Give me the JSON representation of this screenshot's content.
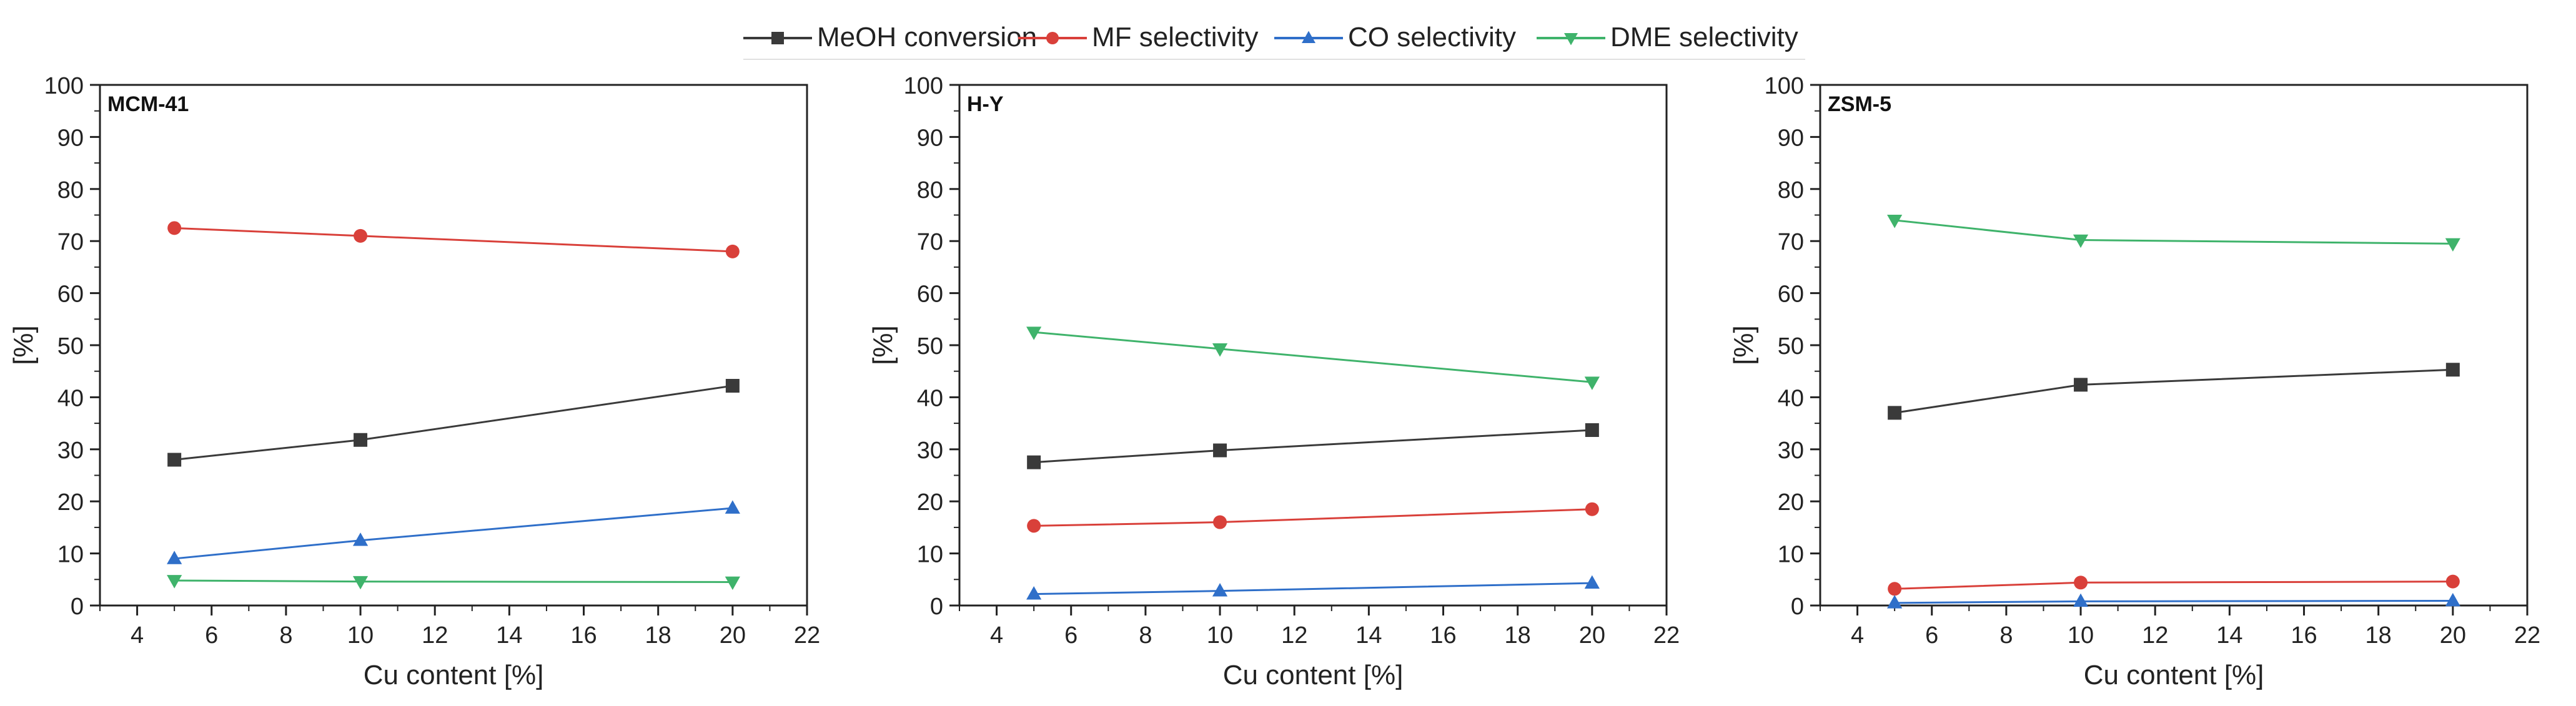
{
  "legend": {
    "items": [
      {
        "label": "MeOH conversion",
        "color": "#3a3a3a",
        "marker": "square"
      },
      {
        "label": "MF selectivity",
        "color": "#d9403a",
        "marker": "circle"
      },
      {
        "label": "CO selectivity",
        "color": "#2f6fc9",
        "marker": "triangle-up"
      },
      {
        "label": "DME selectivity",
        "color": "#3fb36b",
        "marker": "triangle-down"
      }
    ]
  },
  "chart_data": [
    {
      "type": "line",
      "title": "MCM-41",
      "xlabel": "Cu content [%]",
      "ylabel": "[%]",
      "xlim": [
        3,
        22
      ],
      "ylim": [
        0,
        100
      ],
      "xticks": [
        4,
        6,
        8,
        10,
        12,
        14,
        16,
        18,
        20,
        22
      ],
      "yticks": [
        0,
        10,
        20,
        30,
        40,
        50,
        60,
        70,
        80,
        90,
        100
      ],
      "x": [
        5,
        10,
        20
      ],
      "series": [
        {
          "name": "MeOH conversion",
          "values": [
            28,
            31.8,
            42.2
          ]
        },
        {
          "name": "MF selectivity",
          "values": [
            72.5,
            71,
            68
          ]
        },
        {
          "name": "CO selectivity",
          "values": [
            9,
            12.5,
            18.7
          ]
        },
        {
          "name": "DME selectivity",
          "values": [
            4.8,
            4.6,
            4.5
          ]
        }
      ]
    },
    {
      "type": "line",
      "title": "H-Y",
      "xlabel": "Cu content [%]",
      "ylabel": "[%]",
      "xlim": [
        3,
        22
      ],
      "ylim": [
        0,
        100
      ],
      "xticks": [
        4,
        6,
        8,
        10,
        12,
        14,
        16,
        18,
        20,
        22
      ],
      "yticks": [
        0,
        10,
        20,
        30,
        40,
        50,
        60,
        70,
        80,
        90,
        100
      ],
      "x": [
        5,
        10,
        20
      ],
      "series": [
        {
          "name": "MeOH conversion",
          "values": [
            27.5,
            29.8,
            33.7
          ]
        },
        {
          "name": "MF selectivity",
          "values": [
            15.3,
            16,
            18.5
          ]
        },
        {
          "name": "CO selectivity",
          "values": [
            2.2,
            2.8,
            4.3
          ]
        },
        {
          "name": "DME selectivity",
          "values": [
            52.5,
            49.3,
            42.9
          ]
        }
      ]
    },
    {
      "type": "line",
      "title": "ZSM-5",
      "xlabel": "Cu content [%]",
      "ylabel": "[%]",
      "xlim": [
        3,
        22
      ],
      "ylim": [
        0,
        100
      ],
      "xticks": [
        4,
        6,
        8,
        10,
        12,
        14,
        16,
        18,
        20,
        22
      ],
      "yticks": [
        0,
        10,
        20,
        30,
        40,
        50,
        60,
        70,
        80,
        90,
        100
      ],
      "x": [
        5,
        10,
        20
      ],
      "series": [
        {
          "name": "MeOH conversion",
          "values": [
            37,
            42.4,
            45.3
          ]
        },
        {
          "name": "MF selectivity",
          "values": [
            3.2,
            4.4,
            4.6
          ]
        },
        {
          "name": "CO selectivity",
          "values": [
            0.5,
            0.8,
            0.9
          ]
        },
        {
          "name": "DME selectivity",
          "values": [
            74,
            70.2,
            69.5
          ]
        }
      ]
    }
  ]
}
